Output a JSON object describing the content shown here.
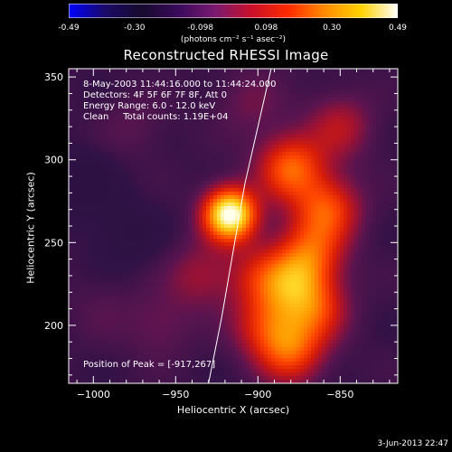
{
  "colorbar": {
    "ticks": [
      "-0.49",
      "-0.30",
      "-0.098",
      "0.098",
      "0.30",
      "0.49"
    ],
    "unit": "(photons cm⁻² s⁻¹ asec⁻²)",
    "stops": [
      "#0000ff",
      "#1a0a66",
      "#160a2e",
      "#3a0a5a",
      "#7a1a70",
      "#c8102a",
      "#ff2a00",
      "#ff8a00",
      "#ffd200",
      "#ffffff"
    ]
  },
  "title": "Reconstructed RHESSI Image",
  "info_lines": [
    "8-May-2003 11:44:16.000 to 11:44:24.000",
    "Detectors: 4F 5F 6F 7F 8F, Att 0",
    "Energy Range: 6.0 - 12.0 keV",
    "Clean     Total counts: 1.19E+04"
  ],
  "peak_label": "Position of Peak = [-917,267]",
  "datestamp": "3-Jun-2013 22:47",
  "chart_data": {
    "type": "heatmap",
    "title": "Reconstructed RHESSI Image",
    "xlabel": "Heliocentric X (arcsec)",
    "ylabel": "Heliocentric Y (arcsec)",
    "xlim": [
      -1015,
      -815
    ],
    "ylim": [
      165,
      355
    ],
    "xticks": [
      -1000,
      -950,
      -900,
      -850
    ],
    "xtick_labels": [
      "−1000",
      "−950",
      "−900",
      "−850"
    ],
    "yticks": [
      200,
      250,
      300,
      350
    ],
    "ytick_labels": [
      "200",
      "250",
      "300",
      "350"
    ],
    "colorbar_range": [
      -0.49,
      0.49
    ],
    "peak": {
      "x": -917,
      "y": 267
    },
    "limb_curve": [
      {
        "x": -930,
        "y": 165
      },
      {
        "x": -922,
        "y": 205
      },
      {
        "x": -915,
        "y": 245
      },
      {
        "x": -908,
        "y": 285
      },
      {
        "x": -900,
        "y": 320
      },
      {
        "x": -892,
        "y": 355
      }
    ],
    "sources": [
      {
        "x": -917,
        "y": 267,
        "v": 0.49
      },
      {
        "x": -880,
        "y": 295,
        "v": 0.25
      },
      {
        "x": -858,
        "y": 270,
        "v": 0.22
      },
      {
        "x": -868,
        "y": 243,
        "v": 0.2
      },
      {
        "x": -880,
        "y": 225,
        "v": 0.2
      },
      {
        "x": -895,
        "y": 200,
        "v": 0.16
      },
      {
        "x": -865,
        "y": 210,
        "v": 0.18
      },
      {
        "x": -880,
        "y": 185,
        "v": 0.22
      },
      {
        "x": -900,
        "y": 230,
        "v": 0.12
      },
      {
        "x": -935,
        "y": 230,
        "v": 0.1
      },
      {
        "x": -960,
        "y": 200,
        "v": 0.06
      },
      {
        "x": -980,
        "y": 255,
        "v": -0.05
      },
      {
        "x": -975,
        "y": 320,
        "v": 0.04
      },
      {
        "x": -1005,
        "y": 285,
        "v": -0.06
      },
      {
        "x": -995,
        "y": 210,
        "v": 0.03
      },
      {
        "x": -850,
        "y": 320,
        "v": 0.12
      },
      {
        "x": -905,
        "y": 335,
        "v": 0.06
      }
    ]
  }
}
